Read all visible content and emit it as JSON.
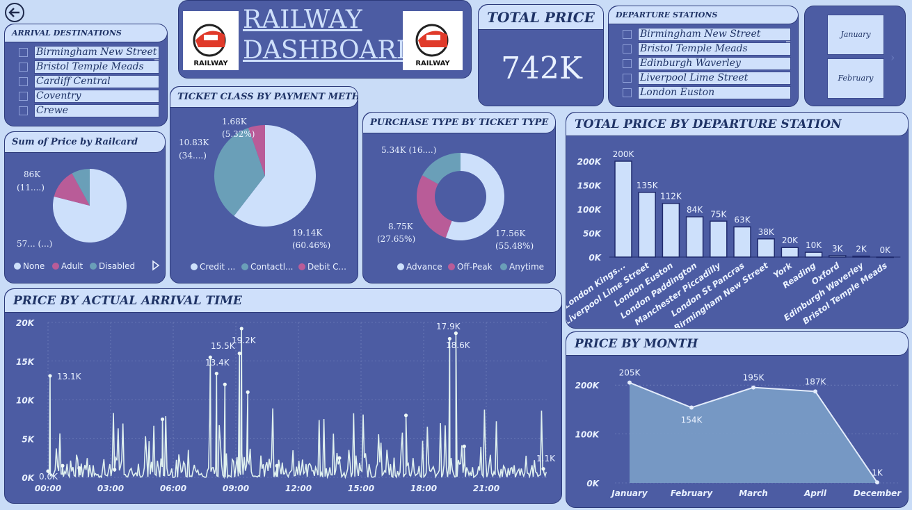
{
  "title_line1": "RAILWAY",
  "title_line2": "DASHBOARD",
  "logo_text": "RAILWAY",
  "colors": {
    "bg": "#c9dcf7",
    "card": "#4c5ca3",
    "header": "#cfe0fb",
    "light": "#cde0fb",
    "mid": "#7b9ec8",
    "pink": "#b95c98",
    "teal": "#6a9fb8"
  },
  "total_price": {
    "title": "TOTAL PRICE",
    "value": "742K"
  },
  "arrival": {
    "title": "ARRIVAL DESTINATIONS",
    "items": [
      "Birmingham New Street",
      "Bristol Temple Meads",
      "Cardiff Central",
      "Coventry",
      "Crewe"
    ]
  },
  "departure": {
    "title": "DEPARTURE STATIONS",
    "items": [
      "Birmingham New Street",
      "Bristol Temple Meads",
      "Edinburgh Waverley",
      "Liverpool Lime Street",
      "London Euston"
    ]
  },
  "months_slicer": {
    "items": [
      "January",
      "February"
    ]
  },
  "railcard": {
    "title": "Sum of Price by Railcard",
    "labels": {
      "a1": "86K",
      "a2": "(11....)",
      "b1": "57... (...)"
    },
    "legend": [
      "None",
      "Adult",
      "Disabled"
    ]
  },
  "ticket_class": {
    "title": "TICKET CLASS BY PAYMENT METHOD",
    "labels": {
      "a1": "1.68K",
      "a2": "(5.32%)",
      "b1": "10.83K",
      "b2": "(34....)",
      "c1": "19.14K",
      "c2": "(60.46%)"
    },
    "legend": [
      "Credit ...",
      "Contactl...",
      "Debit C..."
    ]
  },
  "purchase_type": {
    "title": "PURCHASE TYPE BY TICKET TYPE",
    "labels": {
      "a1": "5.34K (16....)",
      "b1": "8.75K",
      "b2": "(27.65%)",
      "c1": "17.56K",
      "c2": "(55.48%)"
    },
    "legend": [
      "Advance",
      "Off-Peak",
      "Anytime"
    ]
  },
  "dep_station_chart": {
    "title": "TOTAL PRICE BY DEPARTURE STATION",
    "y_ticks": [
      "200K",
      "150K",
      "100K",
      "50K",
      "0K"
    ]
  },
  "arrival_time_chart": {
    "title": "PRICE BY ACTUAL ARRIVAL TIME",
    "y_ticks": [
      "20K",
      "15K",
      "10K",
      "5K",
      "0K"
    ],
    "x_ticks": [
      "00:00",
      "03:00",
      "06:00",
      "09:00",
      "12:00",
      "15:00",
      "18:00",
      "21:00"
    ],
    "labels": {
      "l1": "13.1K",
      "l2": "15.5K",
      "l3": "13.4K",
      "l4": "19.2K",
      "l5": "17.9K",
      "l6": "18.6K",
      "l7": "1.1K",
      "l8": "0.0K"
    }
  },
  "month_chart": {
    "title": "PRICE BY MONTH",
    "y_ticks": [
      "200K",
      "100K",
      "0K"
    ]
  },
  "chart_data": [
    {
      "type": "bar",
      "title": "TOTAL PRICE BY DEPARTURE STATION",
      "categories": [
        "London Kings...",
        "Liverpool Lime Street",
        "London Euston",
        "London Paddington",
        "Manchester Piccadilly",
        "London St Pancras",
        "Birmingham New Street",
        "York",
        "Reading",
        "Oxford",
        "Edinburgh Waverley",
        "Bristol Temple Meads"
      ],
      "values": [
        200,
        135,
        112,
        84,
        75,
        63,
        38,
        20,
        10,
        3,
        2,
        0
      ],
      "data_labels": [
        "200K",
        "135K",
        "112K",
        "84K",
        "75K",
        "63K",
        "38K",
        "20K",
        "10K",
        "3K",
        "2K",
        "0K"
      ],
      "ylim": [
        0,
        220
      ]
    },
    {
      "type": "area",
      "title": "PRICE BY MONTH",
      "categories": [
        "January",
        "February",
        "March",
        "April",
        "December"
      ],
      "values": [
        205,
        154,
        195,
        187,
        1
      ],
      "data_labels": [
        "205K",
        "154K",
        "195K",
        "187K",
        "1K"
      ],
      "ylim": [
        0,
        240
      ]
    },
    {
      "type": "pie",
      "title": "Sum of Price by Railcard",
      "categories": [
        "None",
        "Adult",
        "Disabled"
      ],
      "values": [
        79,
        13,
        8
      ]
    },
    {
      "type": "pie",
      "title": "TICKET CLASS BY PAYMENT METHOD",
      "categories": [
        "Credit ...",
        "Contactl...",
        "Debit C..."
      ],
      "values": [
        60.46,
        34.22,
        5.32
      ]
    },
    {
      "type": "pie",
      "title": "PURCHASE TYPE BY TICKET TYPE",
      "categories": [
        "Advance",
        "Off-Peak",
        "Anytime"
      ],
      "values": [
        55.48,
        27.65,
        16.87
      ]
    },
    {
      "type": "line",
      "title": "PRICE BY ACTUAL ARRIVAL TIME",
      "x": [
        0.0,
        0.1,
        0.7,
        1.5,
        3.2,
        5.5,
        7.8,
        8.1,
        8.5,
        9.2,
        9.3,
        9.6,
        11,
        14,
        17.2,
        19.3,
        19.6,
        20.0,
        23.8
      ],
      "y": [
        0.8,
        13.1,
        1.5,
        1.2,
        1.0,
        7.5,
        15.5,
        13.4,
        12,
        16,
        19.2,
        11,
        1.5,
        2.5,
        8,
        17.9,
        18.6,
        4,
        1.1
      ],
      "ylim": [
        0,
        20
      ]
    }
  ]
}
